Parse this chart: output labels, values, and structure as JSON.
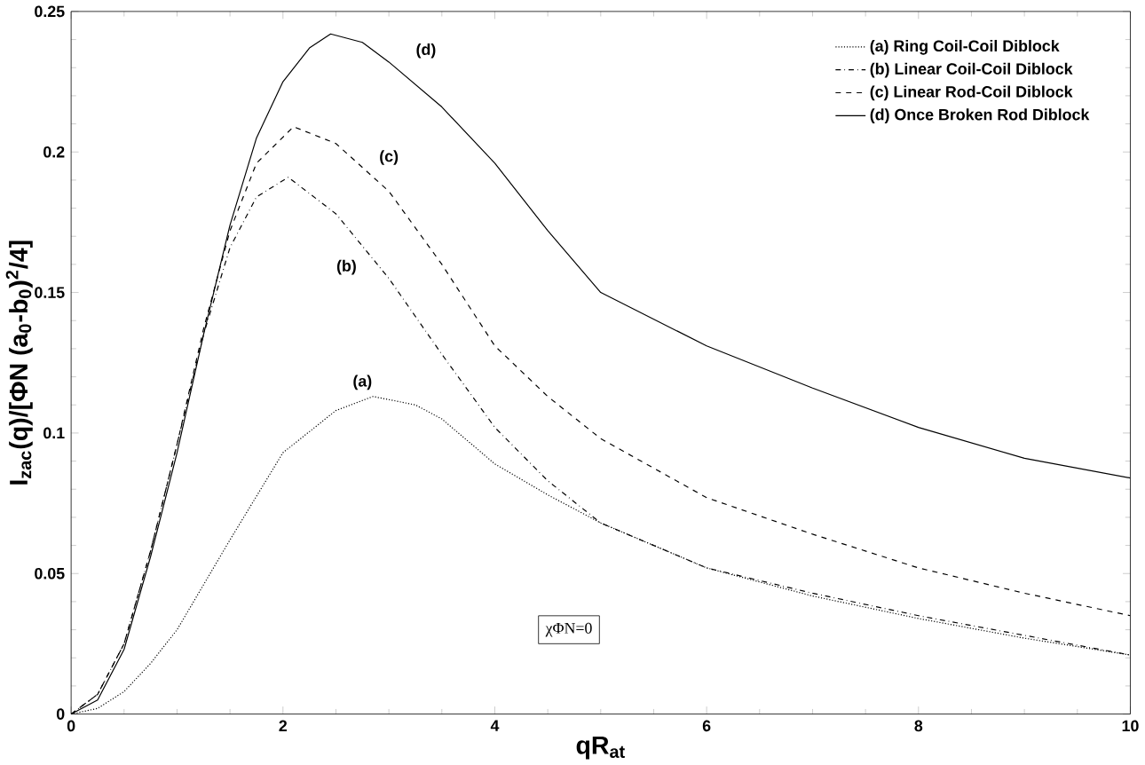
{
  "chart_data": {
    "type": "line",
    "xlabel": "qR$_{at}$",
    "ylabel": "I$_{zac}$(q)/[ΦN (a$_{0}$-b$_{0}$)$^{2}$/4]",
    "xlim": [
      0,
      10
    ],
    "ylim": [
      0,
      0.25
    ],
    "xticks": [
      0,
      2,
      4,
      6,
      8,
      10
    ],
    "yticks": [
      0,
      0.05,
      0.1,
      0.15,
      0.2,
      0.25
    ],
    "grid": false,
    "legend": "top right",
    "series": [
      {
        "name": "(a) Ring Coil-Coil Diblock",
        "color": "#000000",
        "line_style": "dotted",
        "x": [
          0,
          0.25,
          0.5,
          0.75,
          1,
          1.5,
          2,
          2.5,
          2.85,
          3.25,
          3.5,
          4,
          4.5,
          5,
          6,
          7,
          8,
          9,
          10
        ],
        "values": [
          0,
          0.002,
          0.008,
          0.018,
          0.03,
          0.062,
          0.093,
          0.108,
          0.113,
          0.11,
          0.105,
          0.089,
          0.078,
          0.068,
          0.052,
          0.042,
          0.034,
          0.027,
          0.021
        ]
      },
      {
        "name": "(b) Linear Coil-Coil Diblock",
        "color": "#000000",
        "line_style": "dashdot",
        "x": [
          0,
          0.25,
          0.5,
          0.75,
          1,
          1.25,
          1.5,
          1.75,
          2.05,
          2.5,
          3,
          3.5,
          4,
          4.5,
          5,
          6,
          7,
          8,
          9,
          10
        ],
        "values": [
          0,
          0.007,
          0.025,
          0.058,
          0.096,
          0.135,
          0.166,
          0.184,
          0.191,
          0.178,
          0.155,
          0.128,
          0.102,
          0.083,
          0.068,
          0.052,
          0.043,
          0.035,
          0.028,
          0.021
        ]
      },
      {
        "name": "(c) Linear Rod-Coil Diblock",
        "color": "#000000",
        "line_style": "dashed",
        "x": [
          0,
          0.25,
          0.5,
          0.75,
          1,
          1.25,
          1.5,
          1.75,
          2.1,
          2.5,
          3,
          3.5,
          4,
          4.5,
          5,
          6,
          7,
          8,
          9,
          10
        ],
        "values": [
          0,
          0.007,
          0.025,
          0.058,
          0.096,
          0.137,
          0.172,
          0.196,
          0.209,
          0.203,
          0.186,
          0.16,
          0.131,
          0.113,
          0.098,
          0.077,
          0.064,
          0.052,
          0.043,
          0.035
        ]
      },
      {
        "name": "(d) Once Broken Rod Diblock",
        "color": "#000000",
        "line_style": "solid",
        "x": [
          0,
          0.25,
          0.5,
          0.75,
          1,
          1.25,
          1.5,
          1.75,
          2,
          2.25,
          2.45,
          2.75,
          3,
          3.5,
          4,
          4.5,
          5,
          6,
          7,
          8,
          9,
          10
        ],
        "values": [
          0,
          0.005,
          0.023,
          0.056,
          0.093,
          0.135,
          0.174,
          0.205,
          0.225,
          0.237,
          0.242,
          0.239,
          0.232,
          0.216,
          0.196,
          0.172,
          0.15,
          0.131,
          0.116,
          0.102,
          0.091,
          0.084
        ]
      }
    ],
    "annotations": [
      "(a)",
      "(b)",
      "(c)",
      "(d)",
      "χΦN=0"
    ]
  }
}
